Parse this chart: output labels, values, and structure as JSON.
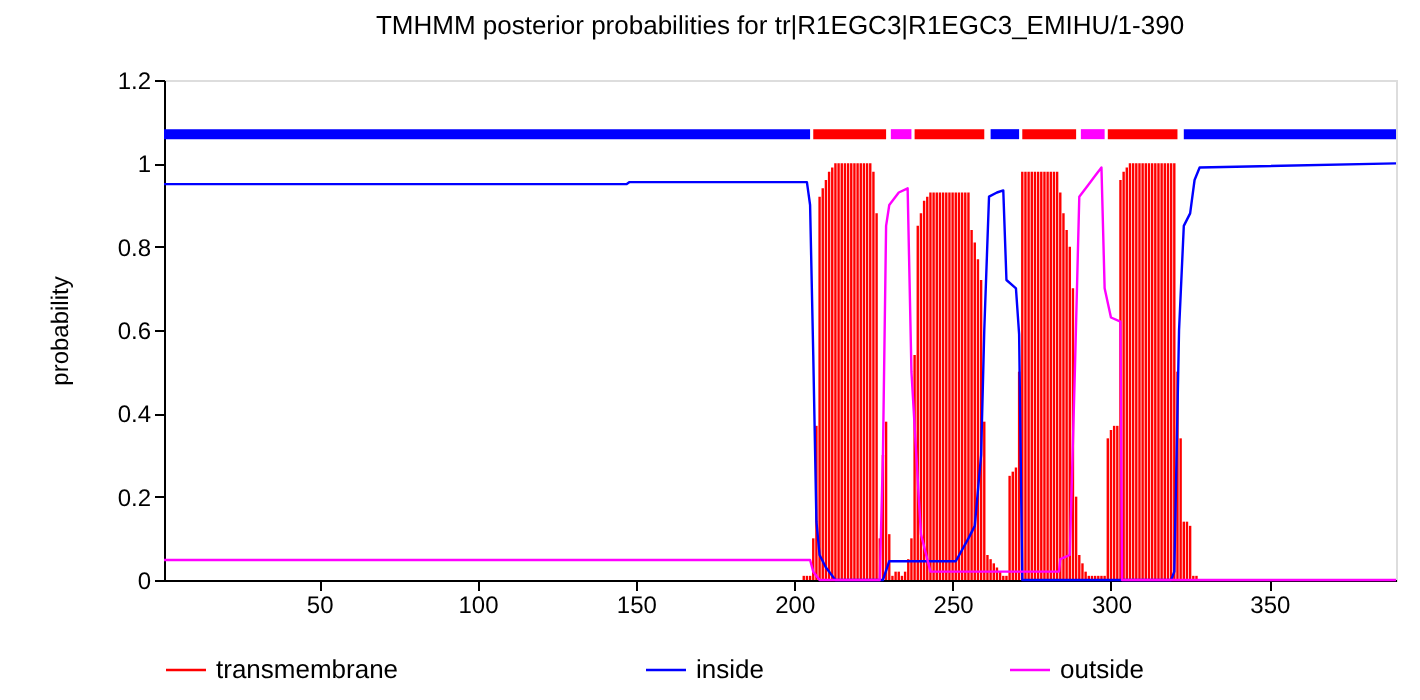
{
  "chart_data": {
    "type": "line",
    "title": "TMHMM posterior probabilities for tr|R1EGC3|R1EGC3_EMIHU/1-390",
    "ylabel": "probability",
    "xlim": [
      1,
      390
    ],
    "ylim": [
      0,
      1.2
    ],
    "xticks": [
      50,
      100,
      150,
      200,
      250,
      300,
      350
    ],
    "yticks": [
      0,
      0.2,
      0.4,
      0.6,
      0.8,
      1,
      1.2
    ],
    "grid": false,
    "legend": "bottom",
    "series": [
      {
        "name": "transmembrane",
        "type": "bar",
        "color": "#ff0000",
        "x": [
          203,
          204,
          205,
          206,
          207,
          208,
          209,
          210,
          211,
          212,
          213,
          214,
          215,
          216,
          217,
          218,
          219,
          220,
          221,
          222,
          223,
          224,
          225,
          226,
          227,
          228,
          229,
          230,
          231,
          232,
          233,
          234,
          235,
          236,
          237,
          238,
          239,
          240,
          241,
          242,
          243,
          244,
          245,
          246,
          247,
          248,
          249,
          250,
          251,
          252,
          253,
          254,
          255,
          256,
          257,
          258,
          259,
          260,
          261,
          262,
          263,
          264,
          265,
          266,
          267,
          268,
          269,
          270,
          271,
          272,
          273,
          274,
          275,
          276,
          277,
          278,
          279,
          280,
          281,
          282,
          283,
          284,
          285,
          286,
          287,
          288,
          289,
          290,
          291,
          292,
          293,
          294,
          295,
          296,
          297,
          298,
          299,
          300,
          301,
          302,
          303,
          304,
          305,
          306,
          307,
          308,
          309,
          310,
          311,
          312,
          313,
          314,
          315,
          316,
          317,
          318,
          319,
          320,
          321,
          322,
          323,
          324,
          325,
          326,
          327
        ],
        "values": [
          0.01,
          0.01,
          0.01,
          0.1,
          0.37,
          0.92,
          0.94,
          0.96,
          0.98,
          0.99,
          1,
          1,
          1,
          1,
          1,
          1,
          1,
          1,
          1,
          1,
          1,
          1,
          0.98,
          0.88,
          0.1,
          0.3,
          0.38,
          0.11,
          0.01,
          0.02,
          0.02,
          0.01,
          0.02,
          0.05,
          0.1,
          0.54,
          0.85,
          0.88,
          0.91,
          0.92,
          0.93,
          0.93,
          0.93,
          0.93,
          0.93,
          0.93,
          0.93,
          0.93,
          0.93,
          0.93,
          0.93,
          0.93,
          0.93,
          0.84,
          0.81,
          0.77,
          0.72,
          0.38,
          0.06,
          0.05,
          0.04,
          0.03,
          0.02,
          0.01,
          0.01,
          0.25,
          0.26,
          0.27,
          0.5,
          0.98,
          0.98,
          0.98,
          0.98,
          0.98,
          0.98,
          0.98,
          0.98,
          0.98,
          0.98,
          0.98,
          0.98,
          0.93,
          0.88,
          0.84,
          0.8,
          0.7,
          0.2,
          0.06,
          0.04,
          0.02,
          0.01,
          0.01,
          0.01,
          0.01,
          0.01,
          0.01,
          0.34,
          0.36,
          0.37,
          0.37,
          0.96,
          0.98,
          0.99,
          1,
          1,
          1,
          1,
          1,
          1,
          1,
          1,
          1,
          1,
          1,
          1,
          1,
          1,
          1,
          0.5,
          0.34,
          0.14,
          0.14,
          0.13,
          0.01,
          0.01
        ]
      },
      {
        "name": "inside",
        "color": "#0000ff",
        "x": [
          1,
          147,
          148,
          204,
          205,
          206,
          207,
          208,
          210,
          213,
          228,
          230,
          251,
          255,
          257,
          259,
          260,
          261.5,
          264,
          266,
          267,
          270,
          271,
          272,
          319,
          320,
          321.5,
          323,
          325,
          326.4,
          328,
          390
        ],
        "values": [
          0.95,
          0.95,
          0.955,
          0.955,
          0.9,
          0.54,
          0.14,
          0.06,
          0.03,
          0,
          0,
          0.045,
          0.045,
          0.1,
          0.13,
          0.3,
          0.6,
          0.92,
          0.93,
          0.935,
          0.72,
          0.7,
          0.59,
          0,
          0,
          0.02,
          0.6,
          0.85,
          0.88,
          0.96,
          0.99,
          1
        ]
      },
      {
        "name": "outside",
        "color": "#ff00ff",
        "x": [
          1,
          205,
          206,
          208,
          227,
          228,
          229,
          230,
          233,
          235.8,
          237,
          240,
          243,
          283.6,
          284,
          287,
          288.6,
          290,
          293,
          295,
          297,
          298,
          300,
          303,
          303.5,
          390
        ],
        "values": [
          0.048,
          0.048,
          0.02,
          0,
          0,
          0.3,
          0.85,
          0.9,
          0.93,
          0.94,
          0.5,
          0.11,
          0.02,
          0.02,
          0.05,
          0.06,
          0.5,
          0.92,
          0.95,
          0.97,
          0.99,
          0.7,
          0.63,
          0.62,
          0,
          0
        ]
      },
      {
        "color": "#0000ff",
        "x": [
          1,
          205,
          233,
          262,
          271,
          300,
          323,
          390
        ],
        "values": [
          1.07,
          1.07,
          null,
          1.07,
          1.07,
          null,
          1.07,
          1.07
        ]
      },
      {
        "color": "#ff00ff",
        "x": [
          230.5,
          237,
          264,
          290.5,
          298
        ],
        "values": [
          1.07,
          1.07,
          null,
          1.07,
          1.07
        ]
      },
      {
        "color": "#ff0000",
        "x": [
          206,
          229,
          233,
          238,
          260,
          266,
          272,
          289,
          294,
          299,
          321
        ],
        "values": [
          1.07,
          1.07,
          null,
          1.07,
          1.07,
          null,
          1.07,
          1.07,
          null,
          1.07,
          1.07
        ]
      }
    ]
  }
}
